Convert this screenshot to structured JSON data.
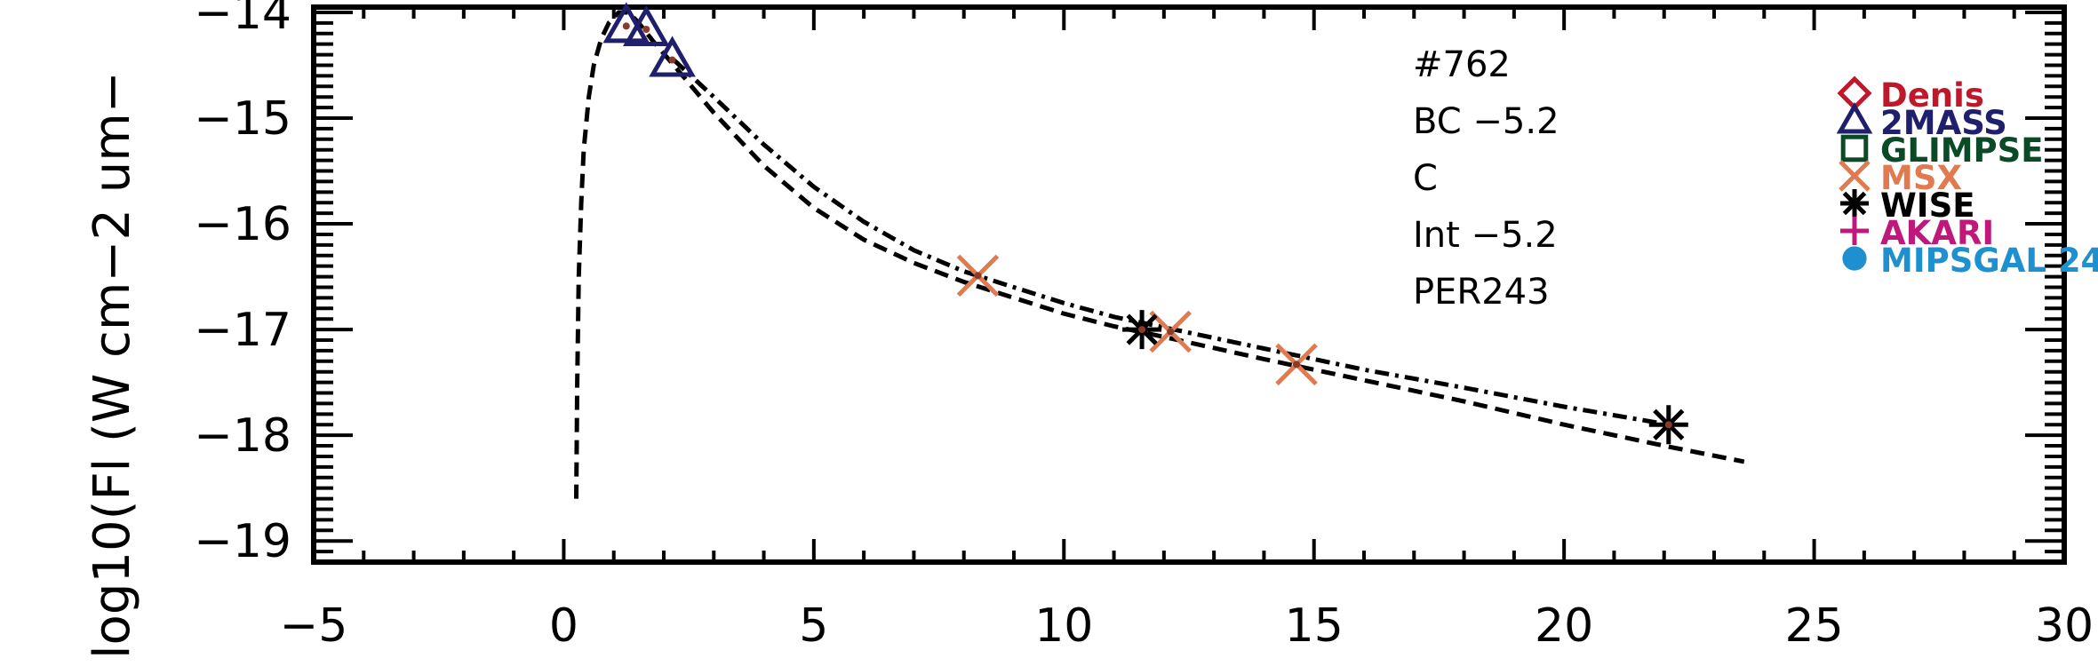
{
  "chart_data": {
    "type": "scatter",
    "title": "",
    "xlabel": "",
    "ylabel": "log10(Fl (W cm−2 um−",
    "xlim": [
      -5,
      30
    ],
    "ylim": [
      -19.2,
      -13.95
    ],
    "xticks": [
      -5,
      0,
      5,
      10,
      15,
      20,
      25,
      30
    ],
    "xtick_labels": [
      "−5",
      "0",
      "5",
      "10",
      "15",
      "20",
      "25",
      "30"
    ],
    "yticks": [
      -19,
      -18,
      -17,
      -16,
      -15,
      -14
    ],
    "ytick_labels": [
      "−19",
      "−18",
      "−17",
      "−16",
      "−15",
      "−14"
    ],
    "annotations": [
      "#762",
      "BC −5.2",
      "C",
      "Int −5.2",
      "PER243"
    ],
    "legend_position": "right",
    "legend": [
      {
        "name": "Denis",
        "marker": "diamond",
        "color": "#c0182b"
      },
      {
        "name": "2MASS",
        "marker": "triangle",
        "color": "#1f1f6e"
      },
      {
        "name": "GLIMPSE",
        "marker": "square",
        "color": "#0b4a26"
      },
      {
        "name": "MSX",
        "marker": "x",
        "color": "#e07a50"
      },
      {
        "name": "WISE",
        "marker": "asterisk",
        "color": "#000000"
      },
      {
        "name": "AKARI",
        "marker": "plus",
        "color": "#c0187a"
      },
      {
        "name": "MIPSGAL 24",
        "marker": "circle",
        "color": "#1e90d0"
      }
    ],
    "series": [
      {
        "name": "2MASS",
        "marker": "triangle",
        "color": "#1f1f6e",
        "x": [
          1.25,
          1.65,
          2.17
        ],
        "y": [
          -14.13,
          -14.16,
          -14.45
        ]
      },
      {
        "name": "MSX",
        "marker": "x",
        "color": "#e07a50",
        "x": [
          8.28,
          12.13,
          14.65
        ],
        "y": [
          -16.49,
          -17.02,
          -17.33
        ]
      },
      {
        "name": "WISE",
        "marker": "asterisk",
        "color": "#000000",
        "x": [
          11.56,
          22.09
        ],
        "y": [
          -17.0,
          -17.9
        ]
      }
    ],
    "model_curves": [
      {
        "style": "dashed",
        "x": [
          0.25,
          0.27,
          0.3,
          0.35,
          0.4,
          0.5,
          0.6,
          0.75,
          0.9,
          1.1,
          1.3,
          1.5,
          1.8,
          2.2,
          3.0,
          4.0,
          5.0,
          6.0,
          7.0,
          8.0,
          9.0,
          10.0,
          11.0,
          12.0,
          14.0,
          16.0,
          18.0,
          20.0,
          22.0,
          23.6
        ],
        "y": [
          -18.6,
          -17.5,
          -16.5,
          -15.8,
          -15.3,
          -14.8,
          -14.5,
          -14.25,
          -14.1,
          -14.0,
          -14.0,
          -14.1,
          -14.28,
          -14.5,
          -14.95,
          -15.45,
          -15.85,
          -16.15,
          -16.37,
          -16.55,
          -16.7,
          -16.85,
          -16.97,
          -17.07,
          -17.28,
          -17.48,
          -17.68,
          -17.9,
          -18.1,
          -18.25
        ]
      },
      {
        "style": "dash-dot",
        "x": [
          2.2,
          3.0,
          4.0,
          5.0,
          6.0,
          7.0,
          8.0,
          9.0,
          10.0,
          11.0,
          12.0,
          14.0,
          16.0,
          18.0,
          20.0,
          22.1
        ],
        "y": [
          -14.45,
          -14.8,
          -15.25,
          -15.65,
          -15.98,
          -16.25,
          -16.45,
          -16.6,
          -16.75,
          -16.88,
          -16.98,
          -17.18,
          -17.38,
          -17.55,
          -17.73,
          -17.9
        ]
      }
    ]
  }
}
